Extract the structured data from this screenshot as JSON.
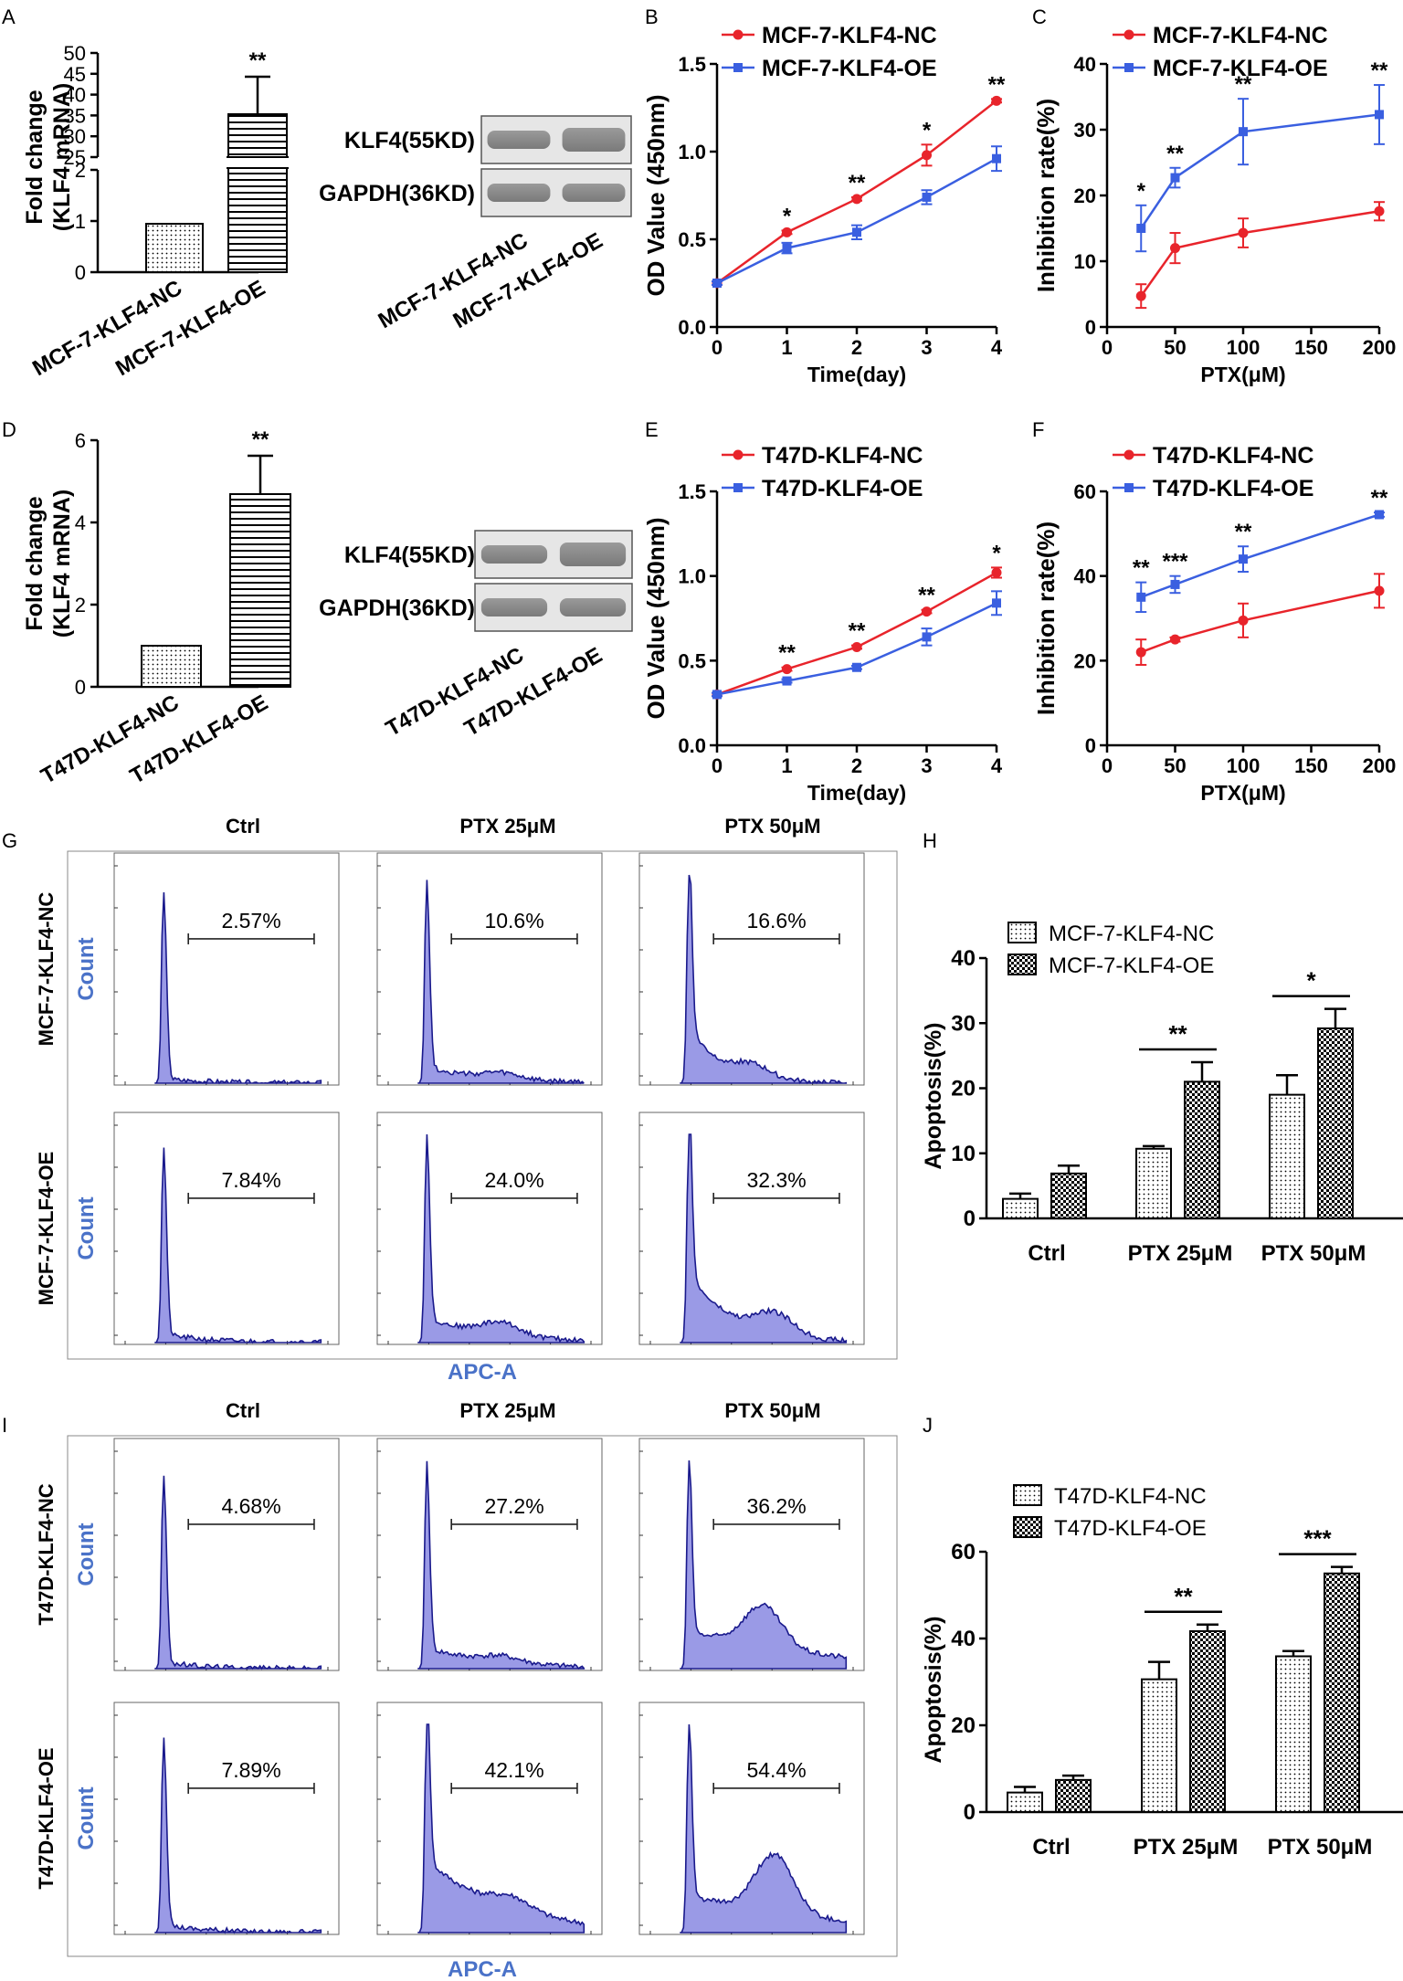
{
  "panel_labels": [
    "A",
    "B",
    "C",
    "D",
    "E",
    "F",
    "G",
    "H",
    "I",
    "J"
  ],
  "colors": {
    "nc": "#e8242b",
    "oe": "#3a5fe0",
    "hist_fill": "#9a9ae6",
    "hist_line": "#1a1a8c",
    "count_label": "#4a72c8",
    "axis_title": "#4a72c8"
  },
  "chart_data": [
    {
      "id": "A",
      "type": "bar",
      "ylabel": "Fold change\n(KLF4 mRNA)",
      "categories": [
        "MCF-7-KLF4-NC",
        "MCF-7-KLF4-OE"
      ],
      "values": [
        1,
        35
      ],
      "errors": [
        0,
        9.5
      ],
      "ylim": [
        0,
        50
      ],
      "yticks_lower": [
        "0",
        "1",
        "2"
      ],
      "yticks_upper": [
        "25",
        "30",
        "35",
        "40",
        "45",
        "50"
      ],
      "significance": "**",
      "blot": {
        "rows": [
          "KLF4(55KD)",
          "GAPDH(36KD)"
        ],
        "lanes": [
          "MCF-7-KLF4-NC",
          "MCF-7-KLF4-OE"
        ]
      }
    },
    {
      "id": "B",
      "type": "line",
      "xlabel": "Time(day)",
      "ylabel": "OD Value (450nm)",
      "x": [
        0,
        1,
        2,
        3,
        4
      ],
      "ylim": [
        0,
        1.5
      ],
      "xticks": [
        "0",
        "1",
        "2",
        "3",
        "4"
      ],
      "yticks": [
        "0.0",
        "0.5",
        "1.0",
        "1.5"
      ],
      "series": [
        {
          "name": "MCF-7-KLF4-NC",
          "values": [
            0.25,
            0.54,
            0.73,
            0.98,
            1.29
          ],
          "errors": [
            0.01,
            0.01,
            0.01,
            0.06,
            0.01
          ]
        },
        {
          "name": "MCF-7-KLF4-OE",
          "values": [
            0.25,
            0.45,
            0.54,
            0.74,
            0.96
          ],
          "errors": [
            0.01,
            0.03,
            0.04,
            0.04,
            0.07
          ]
        }
      ],
      "significance": [
        "",
        "*",
        "**",
        "*",
        "**"
      ]
    },
    {
      "id": "C",
      "type": "line",
      "xlabel": "PTX(μM)",
      "ylabel": "Inhibition rate(%)",
      "x": [
        25,
        50,
        100,
        200
      ],
      "xlim": [
        0,
        200
      ],
      "ylim": [
        0,
        40
      ],
      "xticks": [
        "0",
        "50",
        "100",
        "150",
        "200"
      ],
      "yticks": [
        "0",
        "10",
        "20",
        "30",
        "40"
      ],
      "series": [
        {
          "name": "MCF-7-KLF4-NC",
          "values": [
            4.7,
            12.0,
            14.3,
            17.6
          ],
          "errors": [
            1.8,
            2.3,
            2.2,
            1.4
          ]
        },
        {
          "name": "MCF-7-KLF4-OE",
          "values": [
            15.0,
            22.7,
            29.7,
            32.3
          ],
          "errors": [
            3.5,
            1.5,
            5.0,
            4.5
          ]
        }
      ],
      "significance": [
        "*",
        "**",
        "**",
        "**"
      ]
    },
    {
      "id": "D",
      "type": "bar",
      "ylabel": "Fold change\n(KLF4 mRNA)",
      "categories": [
        "T47D-KLF4-NC",
        "T47D-KLF4-OE"
      ],
      "values": [
        1,
        4.7
      ],
      "errors": [
        0,
        0.95
      ],
      "ylim": [
        0,
        6
      ],
      "yticks": [
        "0",
        "2",
        "4",
        "6"
      ],
      "significance": "**",
      "blot": {
        "rows": [
          "KLF4(55KD)",
          "GAPDH(36KD)"
        ],
        "lanes": [
          "T47D-KLF4-NC",
          "T47D-KLF4-OE"
        ]
      }
    },
    {
      "id": "E",
      "type": "line",
      "xlabel": "Time(day)",
      "ylabel": "OD Value (450nm)",
      "x": [
        0,
        1,
        2,
        3,
        4
      ],
      "ylim": [
        0,
        1.5
      ],
      "xticks": [
        "0",
        "1",
        "2",
        "3",
        "4"
      ],
      "yticks": [
        "0.0",
        "0.5",
        "1.0",
        "1.5"
      ],
      "series": [
        {
          "name": "T47D-KLF4-NC",
          "values": [
            0.3,
            0.45,
            0.58,
            0.79,
            1.02
          ],
          "errors": [
            0.01,
            0.01,
            0.01,
            0.01,
            0.03
          ]
        },
        {
          "name": "T47D-KLF4-OE",
          "values": [
            0.3,
            0.38,
            0.46,
            0.64,
            0.84
          ],
          "errors": [
            0.01,
            0.01,
            0.01,
            0.05,
            0.07
          ]
        }
      ],
      "significance": [
        "",
        "**",
        "**",
        "**",
        "*"
      ]
    },
    {
      "id": "F",
      "type": "line",
      "xlabel": "PTX(μM)",
      "ylabel": "Inhibition rate(%)",
      "x": [
        25,
        50,
        100,
        200
      ],
      "xlim": [
        0,
        200
      ],
      "ylim": [
        0,
        60
      ],
      "xticks": [
        "0",
        "50",
        "100",
        "150",
        "200"
      ],
      "yticks": [
        "0",
        "20",
        "40",
        "60"
      ],
      "series": [
        {
          "name": "T47D-KLF4-NC",
          "values": [
            22.0,
            25.0,
            29.5,
            36.5
          ],
          "errors": [
            3.0,
            0.5,
            4.0,
            4.0
          ]
        },
        {
          "name": "T47D-KLF4-OE",
          "values": [
            35.0,
            38.0,
            44.0,
            54.5
          ],
          "errors": [
            3.5,
            2.0,
            3.0,
            0.5
          ]
        }
      ],
      "significance": [
        "**",
        "***",
        "**",
        "**"
      ]
    },
    {
      "id": "G",
      "type": "histogram-grid",
      "columns": [
        "Ctrl",
        "PTX 25μM",
        "PTX 50μM"
      ],
      "rows": [
        "MCF-7-KLF4-NC",
        "MCF-7-KLF4-OE"
      ],
      "ylabel": "Count",
      "xlabel": "APC-A",
      "percentages": [
        [
          "2.57%",
          "10.6%",
          "16.6%"
        ],
        [
          "7.84%",
          "24.0%",
          "32.3%"
        ]
      ]
    },
    {
      "id": "H",
      "type": "bar",
      "ylabel": "Apoptosis(%)",
      "categories": [
        "Ctrl",
        "PTX 25μM",
        "PTX 50μM"
      ],
      "ylim": [
        0,
        40
      ],
      "yticks": [
        "0",
        "10",
        "20",
        "30",
        "40"
      ],
      "series": [
        {
          "name": "MCF-7-KLF4-NC",
          "values": [
            3.0,
            10.7,
            19.0
          ],
          "errors": [
            0.8,
            0.4,
            3.0
          ]
        },
        {
          "name": "MCF-7-KLF4-OE",
          "values": [
            6.9,
            21.0,
            29.2
          ],
          "errors": [
            1.2,
            3.0,
            3.0
          ]
        }
      ],
      "significance": [
        "",
        "**",
        "*"
      ]
    },
    {
      "id": "I",
      "type": "histogram-grid",
      "columns": [
        "Ctrl",
        "PTX 25μM",
        "PTX 50μM"
      ],
      "rows": [
        "T47D-KLF4-NC",
        "T47D-KLF4-OE"
      ],
      "ylabel": "Count",
      "xlabel": "APC-A",
      "percentages": [
        [
          "4.68%",
          "27.2%",
          "36.2%"
        ],
        [
          "7.89%",
          "42.1%",
          "54.4%"
        ]
      ]
    },
    {
      "id": "J",
      "type": "bar",
      "ylabel": "Apoptosis(%)",
      "categories": [
        "Ctrl",
        "PTX 25μM",
        "PTX 50μM"
      ],
      "ylim": [
        0,
        60
      ],
      "yticks": [
        "0",
        "20",
        "40",
        "60"
      ],
      "series": [
        {
          "name": "T47D-KLF4-NC",
          "values": [
            4.5,
            30.6,
            35.9
          ],
          "errors": [
            1.3,
            4.0,
            1.2
          ]
        },
        {
          "name": "T47D-KLF4-OE",
          "values": [
            7.4,
            41.7,
            55.0
          ],
          "errors": [
            1.0,
            1.5,
            1.5
          ]
        }
      ],
      "significance": [
        "",
        "**",
        "***"
      ]
    }
  ]
}
